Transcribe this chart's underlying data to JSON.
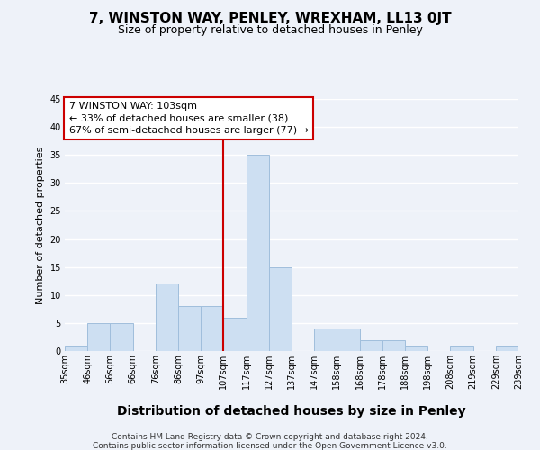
{
  "title": "7, WINSTON WAY, PENLEY, WREXHAM, LL13 0JT",
  "subtitle": "Size of property relative to detached houses in Penley",
  "bar_heights": [
    1,
    5,
    5,
    0,
    12,
    8,
    8,
    6,
    35,
    15,
    0,
    4,
    4,
    2,
    2,
    1,
    0,
    1,
    0,
    1
  ],
  "bin_labels": [
    "35sqm",
    "46sqm",
    "56sqm",
    "66sqm",
    "76sqm",
    "86sqm",
    "97sqm",
    "107sqm",
    "117sqm",
    "127sqm",
    "137sqm",
    "147sqm",
    "158sqm",
    "168sqm",
    "178sqm",
    "188sqm",
    "198sqm",
    "208sqm",
    "219sqm",
    "229sqm",
    "239sqm"
  ],
  "bar_color": "#cddff2",
  "bar_edge_color": "#a0bedc",
  "vline_x": 7,
  "vline_color": "#cc0000",
  "ylabel": "Number of detached properties",
  "xlabel": "Distribution of detached houses by size in Penley",
  "ylim": [
    0,
    45
  ],
  "yticks": [
    0,
    5,
    10,
    15,
    20,
    25,
    30,
    35,
    40,
    45
  ],
  "annotation_title": "7 WINSTON WAY: 103sqm",
  "annotation_line1": "← 33% of detached houses are smaller (38)",
  "annotation_line2": "67% of semi-detached houses are larger (77) →",
  "footer1": "Contains HM Land Registry data © Crown copyright and database right 2024.",
  "footer2": "Contains public sector information licensed under the Open Government Licence v3.0.",
  "background_color": "#eef2f9",
  "grid_color": "#ffffff",
  "title_fontsize": 11,
  "subtitle_fontsize": 9,
  "ylabel_fontsize": 8,
  "xlabel_fontsize": 10,
  "tick_fontsize": 7,
  "footer_fontsize": 6.5,
  "annot_fontsize": 8
}
